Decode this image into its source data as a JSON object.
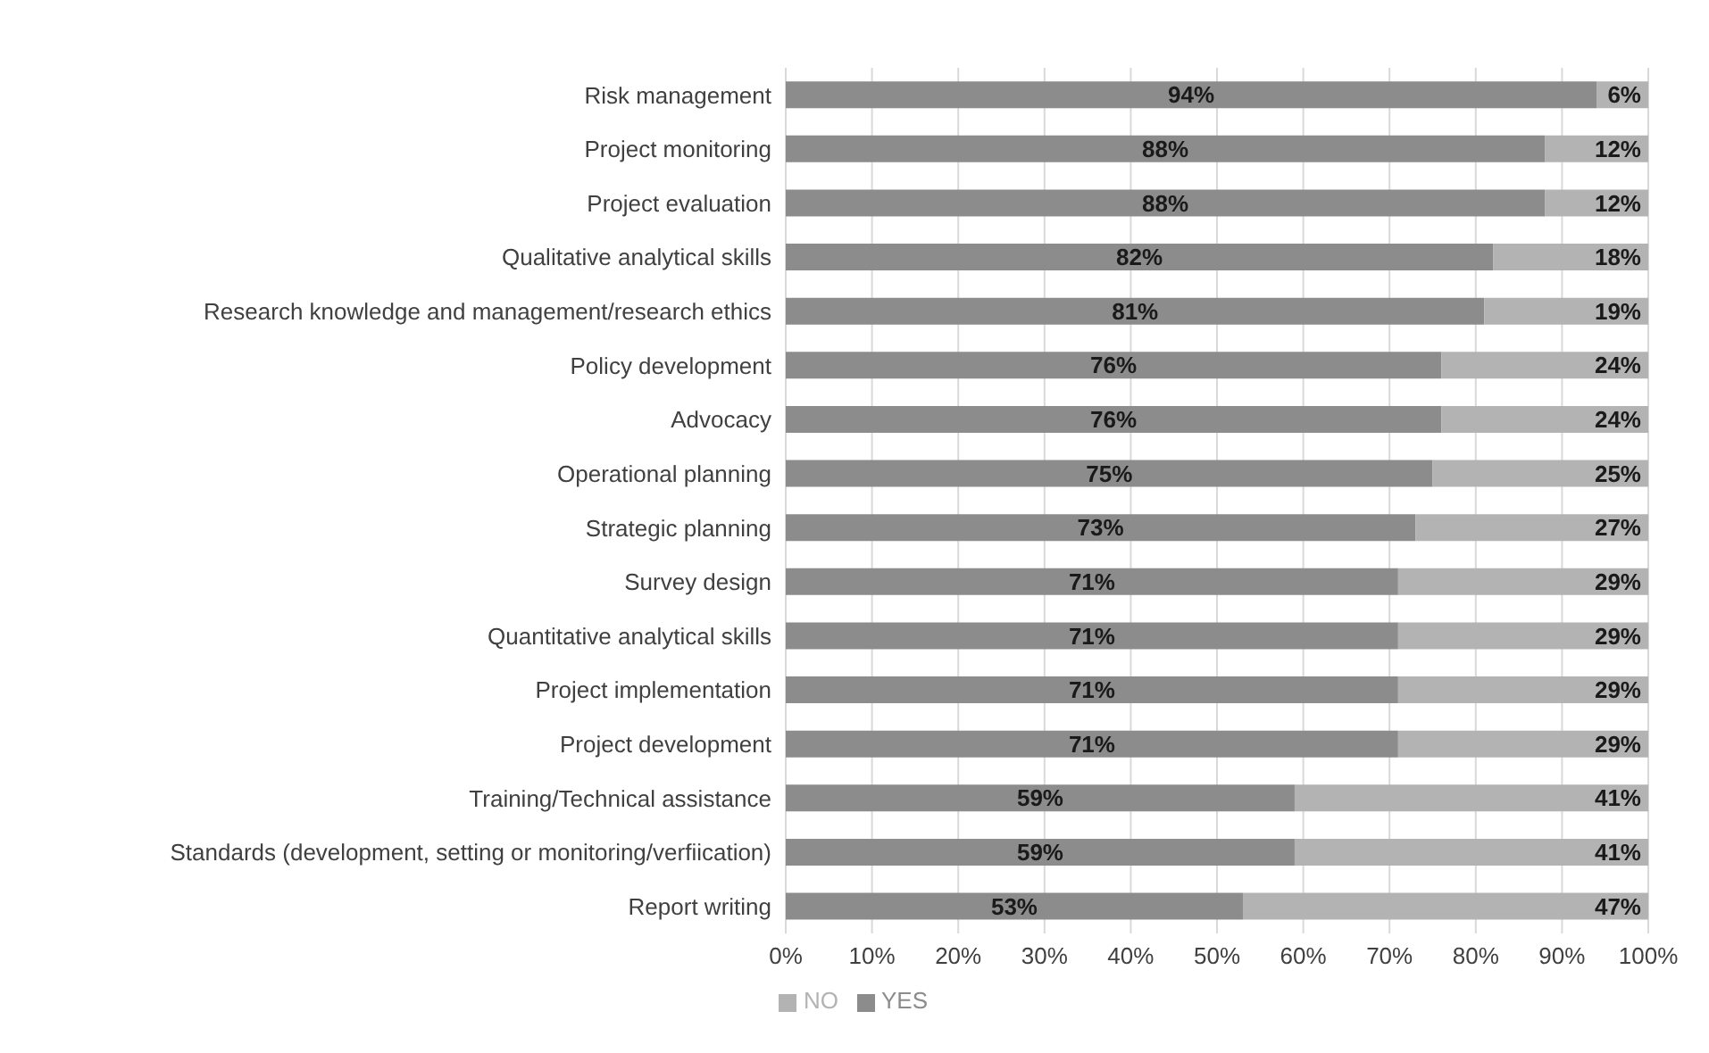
{
  "chart_data": {
    "type": "bar",
    "orientation": "horizontal",
    "stacked": true,
    "categories": [
      "Risk management",
      "Project monitoring",
      "Project evaluation",
      "Qualitative analytical skills",
      "Research knowledge and management/research ethics",
      "Policy development",
      "Advocacy",
      "Operational planning",
      "Strategic planning",
      "Survey design",
      "Quantitative analytical skills",
      "Project implementation",
      "Project development",
      "Training/Technical assistance",
      "Standards (development, setting or monitoring/verfiication)",
      "Report writing"
    ],
    "series": [
      {
        "name": "YES",
        "color": "#8c8c8c",
        "values": [
          94,
          88,
          88,
          82,
          81,
          76,
          76,
          75,
          73,
          71,
          71,
          71,
          71,
          59,
          59,
          53
        ],
        "value_labels": [
          "94%",
          "88%",
          "88%",
          "82%",
          "81%",
          "76%",
          "76%",
          "75%",
          "73%",
          "71%",
          "71%",
          "71%",
          "71%",
          "59%",
          "59%",
          "53%"
        ]
      },
      {
        "name": "NO",
        "color": "#b3b3b3",
        "values": [
          6,
          12,
          12,
          18,
          19,
          24,
          24,
          25,
          27,
          29,
          29,
          29,
          29,
          41,
          41,
          47
        ],
        "value_labels": [
          "6%",
          "12%",
          "12%",
          "18%",
          "19%",
          "24%",
          "24%",
          "25%",
          "27%",
          "29%",
          "29%",
          "29%",
          "29%",
          "41%",
          "41%",
          "47%"
        ]
      }
    ],
    "xlim": [
      0,
      100
    ],
    "xticks": [
      {
        "value": 0,
        "label": "0%"
      },
      {
        "value": 10,
        "label": "10%"
      },
      {
        "value": 20,
        "label": "20%"
      },
      {
        "value": 30,
        "label": "30%"
      },
      {
        "value": 40,
        "label": "40%"
      },
      {
        "value": 50,
        "label": "50%"
      },
      {
        "value": 60,
        "label": "60%"
      },
      {
        "value": 70,
        "label": "70%"
      },
      {
        "value": 80,
        "label": "80%"
      },
      {
        "value": 90,
        "label": "90%"
      },
      {
        "value": 100,
        "label": "100%"
      }
    ],
    "grid": "x",
    "legend": "bottom left"
  }
}
